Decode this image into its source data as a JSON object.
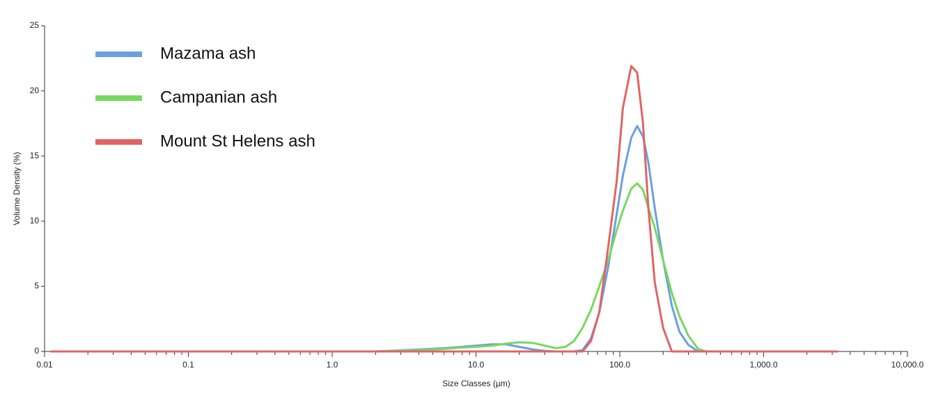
{
  "chart_data": {
    "type": "line",
    "xlabel": "Size Classes (µm)",
    "ylabel": "Volume Density (%)",
    "xscale": "log",
    "grid": false,
    "legend": "upper-left",
    "x": [
      0.011,
      0.1,
      1,
      2,
      4,
      6,
      8,
      10,
      13,
      16,
      20,
      25,
      30,
      36,
      42,
      48,
      55,
      63,
      72,
      83,
      95,
      105,
      120,
      132,
      145,
      158,
      175,
      200,
      230,
      260,
      300,
      350,
      400,
      500,
      1000,
      3300
    ],
    "series": [
      {
        "name": "Mazama ash",
        "color": "#6a9fe0",
        "values": [
          0,
          0,
          0,
          0,
          0.15,
          0.25,
          0.35,
          0.45,
          0.55,
          0.55,
          0.35,
          0.15,
          0.05,
          0,
          0,
          0,
          0.1,
          1.0,
          3.0,
          6.5,
          10.5,
          13.5,
          16.4,
          17.3,
          16.5,
          14.5,
          11,
          7,
          3.5,
          1.5,
          0.5,
          0,
          0,
          0,
          0,
          0
        ]
      },
      {
        "name": "Campanian ash",
        "color": "#77d860",
        "values": [
          0,
          0,
          0,
          0,
          0.1,
          0.2,
          0.3,
          0.35,
          0.45,
          0.6,
          0.7,
          0.65,
          0.45,
          0.25,
          0.35,
          0.8,
          1.8,
          3.2,
          5,
          7,
          9.3,
          10.8,
          12.5,
          12.9,
          12.4,
          11,
          9.5,
          7,
          4.5,
          2.7,
          1.2,
          0.2,
          0,
          0,
          0,
          0
        ]
      },
      {
        "name": "Mount St Helens ash",
        "color": "#e06464",
        "values": [
          0,
          0,
          0,
          0,
          0,
          0,
          0,
          0,
          0,
          0,
          0,
          0,
          0,
          0,
          0,
          0,
          0,
          0.8,
          3,
          8,
          13,
          18.7,
          21.9,
          21.4,
          17.5,
          11,
          5.3,
          1.8,
          0,
          0,
          0,
          0,
          0,
          0,
          0,
          0
        ]
      }
    ],
    "xlim": [
      0.01,
      10000
    ],
    "ylim": [
      0,
      25
    ],
    "xticks": [
      0.01,
      0.1,
      {
        "value": 1,
        "label": "1.0"
      },
      {
        "value": 10,
        "label": "10.0"
      },
      {
        "value": 100,
        "label": "100.0"
      },
      {
        "value": 1000,
        "label": "1,000.0"
      },
      {
        "value": 10000,
        "label": "10,000.0"
      }
    ],
    "xminorticks": [
      0.02,
      0.03,
      0.04,
      0.05,
      0.06,
      0.07,
      0.08,
      0.09,
      0.2,
      0.3,
      0.4,
      0.5,
      0.6,
      0.7,
      0.8,
      0.9,
      2,
      3,
      4,
      5,
      6,
      7,
      8,
      9,
      20,
      30,
      40,
      50,
      60,
      70,
      80,
      90,
      200,
      300,
      400,
      500,
      600,
      700,
      800,
      900,
      2000,
      3000,
      4000,
      5000,
      6000,
      7000,
      8000,
      9000
    ],
    "yticks": [
      0,
      5,
      10,
      15,
      20,
      25
    ]
  }
}
